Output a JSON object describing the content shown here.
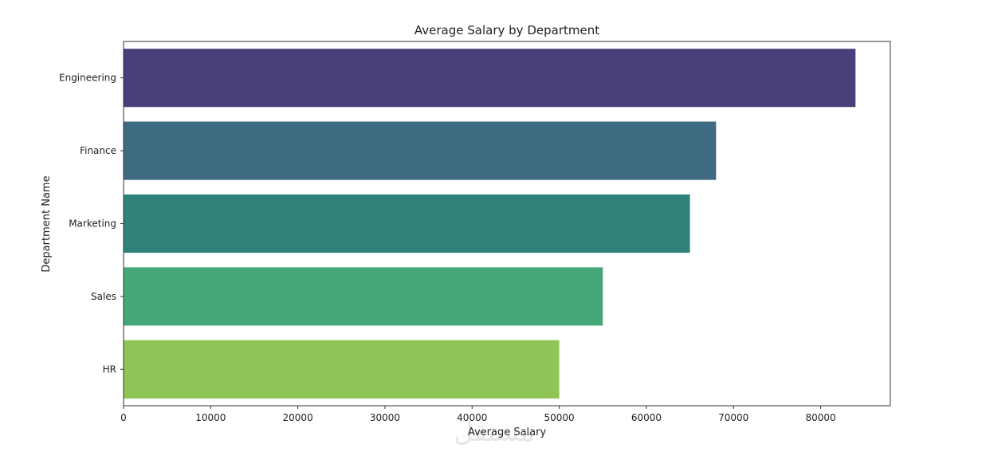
{
  "chart_data": {
    "type": "bar",
    "orientation": "horizontal",
    "title": "Average Salary by Department",
    "xlabel": "Average Salary",
    "ylabel": "Department Name",
    "categories": [
      "Engineering",
      "Finance",
      "Marketing",
      "Sales",
      "HR"
    ],
    "values": [
      84000,
      68000,
      65000,
      55000,
      50000
    ],
    "colors": [
      "#4b3f7b",
      "#3e6a82",
      "#2f8279",
      "#46a779",
      "#8fc556"
    ],
    "xlim": [
      0,
      88000
    ],
    "xticks": [
      0,
      10000,
      20000,
      30000,
      40000,
      50000,
      60000,
      70000,
      80000
    ],
    "xtick_labels": [
      "0",
      "10000",
      "20000",
      "30000",
      "40000",
      "50000",
      "60000",
      "70000",
      "80000"
    ],
    "grid": false,
    "legend": "none"
  },
  "watermark": "مستقل"
}
